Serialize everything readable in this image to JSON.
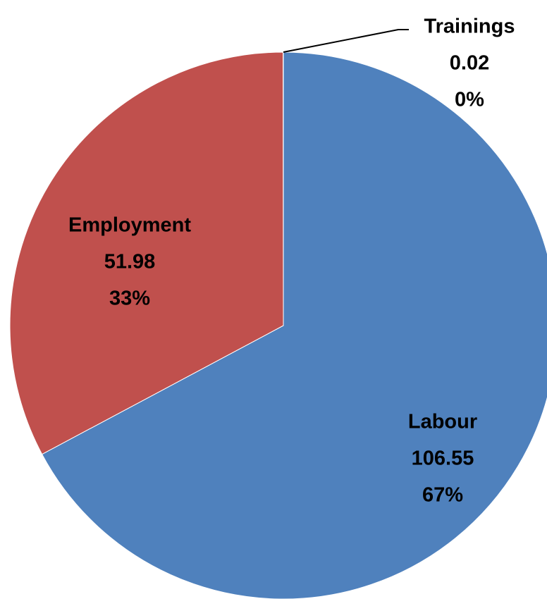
{
  "chart_data": {
    "type": "pie",
    "title": "",
    "slices": [
      {
        "label": "Labour",
        "value": 106.55,
        "percent_label": "67%",
        "color": "#4F81BD"
      },
      {
        "label": "Employment",
        "value": 51.98,
        "percent_label": "33%",
        "color": "#C0504D"
      },
      {
        "label": "Trainings",
        "value": 0.02,
        "percent_label": "0%",
        "color": "#9BBB59"
      }
    ],
    "start_angle": "12 o'clock",
    "direction": "clockwise",
    "legend": "none",
    "data_labels": "category, value, percentage"
  }
}
